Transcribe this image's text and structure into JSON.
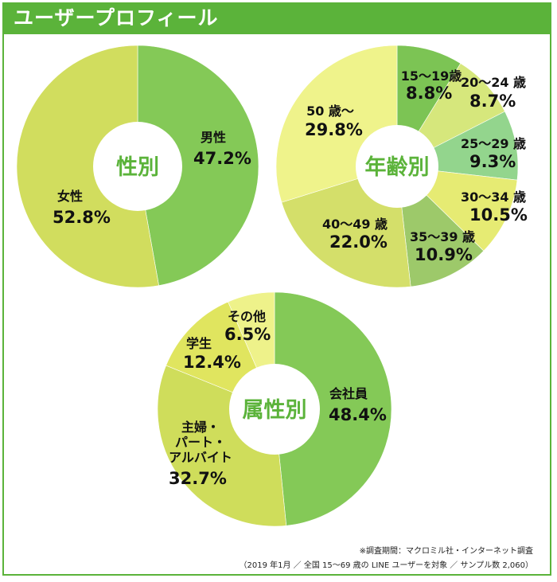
{
  "title": "ユーザープロフィール",
  "colors": {
    "brand": "#5bb33a",
    "center": "#ffffff"
  },
  "chart_data": [
    {
      "type": "pie",
      "title": "性別",
      "slices": [
        {
          "label": "男性",
          "value": 47.2,
          "value_text": "47.2%",
          "color": "#84c957"
        },
        {
          "label": "女性",
          "value": 52.8,
          "value_text": "52.8%",
          "color": "#d1dd5e"
        }
      ]
    },
    {
      "type": "pie",
      "title": "年齢別",
      "slices": [
        {
          "label": "15〜19歳",
          "value": 8.8,
          "value_text": "8.8%",
          "color": "#7cc454"
        },
        {
          "label": "20〜24 歳",
          "value": 8.7,
          "value_text": "8.7%",
          "color": "#d6e77c"
        },
        {
          "label": "25〜29 歳",
          "value": 9.3,
          "value_text": "9.3%",
          "color": "#93d58d"
        },
        {
          "label": "30〜34 歳",
          "value": 10.5,
          "value_text": "10.5%",
          "color": "#e6eb73"
        },
        {
          "label": "35〜39 歳",
          "value": 10.9,
          "value_text": "10.9%",
          "color": "#9dc96a"
        },
        {
          "label": "40〜49 歳",
          "value": 22.0,
          "value_text": "22.0%",
          "color": "#d4df6a"
        },
        {
          "label": "50 歳〜",
          "value": 29.8,
          "value_text": "29.8%",
          "color": "#eff38b"
        }
      ]
    },
    {
      "type": "pie",
      "title": "属性別",
      "slices": [
        {
          "label": "会社員",
          "value": 48.4,
          "value_text": "48.4%",
          "color": "#84c957"
        },
        {
          "label": "主婦・\nパート・\nアルバイト",
          "value": 32.7,
          "value_text": "32.7%",
          "color": "#cfdd5b"
        },
        {
          "label": "学生",
          "value": 12.4,
          "value_text": "12.4%",
          "color": "#e0e55f"
        },
        {
          "label": "その他",
          "value": 6.5,
          "value_text": "6.5%",
          "color": "#eef28a"
        }
      ]
    }
  ],
  "footnote": {
    "line1": "※調査期間：マクロミル社・インターネット調査",
    "line2": "（2019 年1月 ／ 全国 15〜69 歳の LINE ユーザーを対象 ／ サンプル数 2,060）"
  }
}
